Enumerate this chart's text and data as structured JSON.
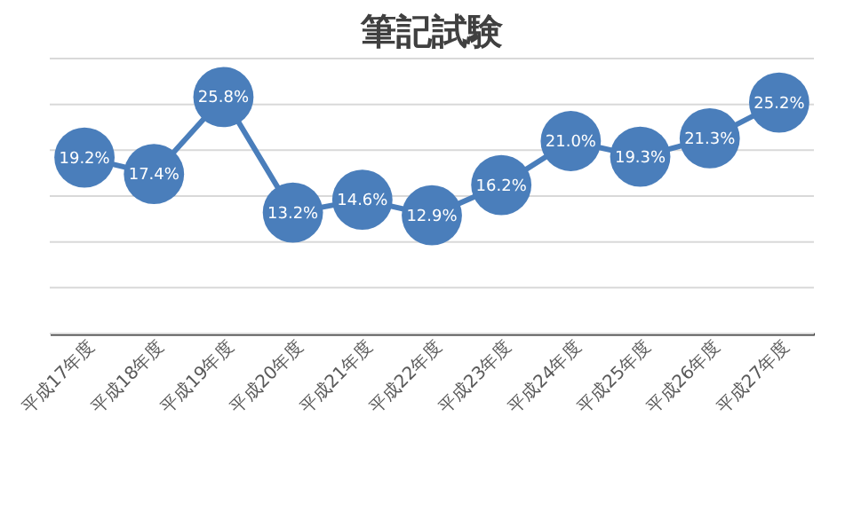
{
  "chart_data": {
    "type": "line",
    "title": "筆記試験",
    "categories": [
      "平成17年度",
      "平成18年度",
      "平成19年度",
      "平成20年度",
      "平成21年度",
      "平成22年度",
      "平成23年度",
      "平成24年度",
      "平成25年度",
      "平成26年度",
      "平成27年度"
    ],
    "series": [
      {
        "color": "#4a7ebb",
        "values": [
          19.2,
          17.4,
          25.8,
          13.2,
          14.6,
          12.9,
          16.2,
          21.0,
          19.3,
          21.3,
          25.2
        ],
        "value_labels": [
          "19.2%",
          "17.4%",
          "25.8%",
          "13.2%",
          "14.6%",
          "12.9%",
          "16.2%",
          "21.0%",
          "19.3%",
          "21.3%",
          "25.2%"
        ]
      }
    ],
    "ylim": [
      0,
      30
    ],
    "yticks": [
      {
        "value": 0,
        "label": null
      },
      {
        "value": 5,
        "label": null
      },
      {
        "value": 10,
        "label": null
      },
      {
        "value": 15,
        "label": null
      },
      {
        "value": 20,
        "label": null
      },
      {
        "value": 25,
        "label": null
      },
      {
        "value": 30,
        "label": null
      }
    ],
    "tick_labels": "x",
    "grid": "y",
    "marker": "circle",
    "line_style": "solid"
  }
}
